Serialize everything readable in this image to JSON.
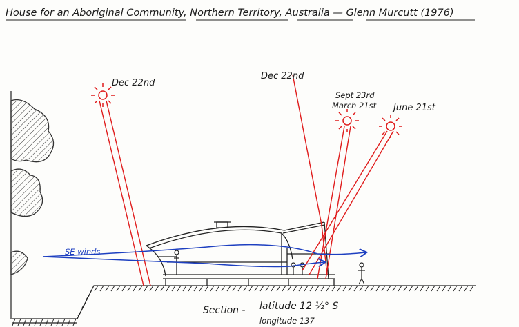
{
  "title": "House for an Aboriginal Community, Northern Territory, Australia — Glenn Murcutt (1976)",
  "labels": {
    "dec22_left": "Dec 22nd",
    "dec22_center": "Dec 22nd",
    "sept23": "Sept 23rd",
    "march21": "March 21st",
    "june21": "June 21st",
    "se_winds": "SE winds"
  },
  "caption": {
    "section": "Section -",
    "latitude": "latitude 12 ½° S",
    "longitude": "longitude 137"
  },
  "colors": {
    "sun_rays": "#e01c1c",
    "wind": "#1d3fc0",
    "ink": "#1b1b1b"
  },
  "icons": [
    "sun-icon",
    "wind-arrow-icon",
    "human-figure-icon"
  ]
}
